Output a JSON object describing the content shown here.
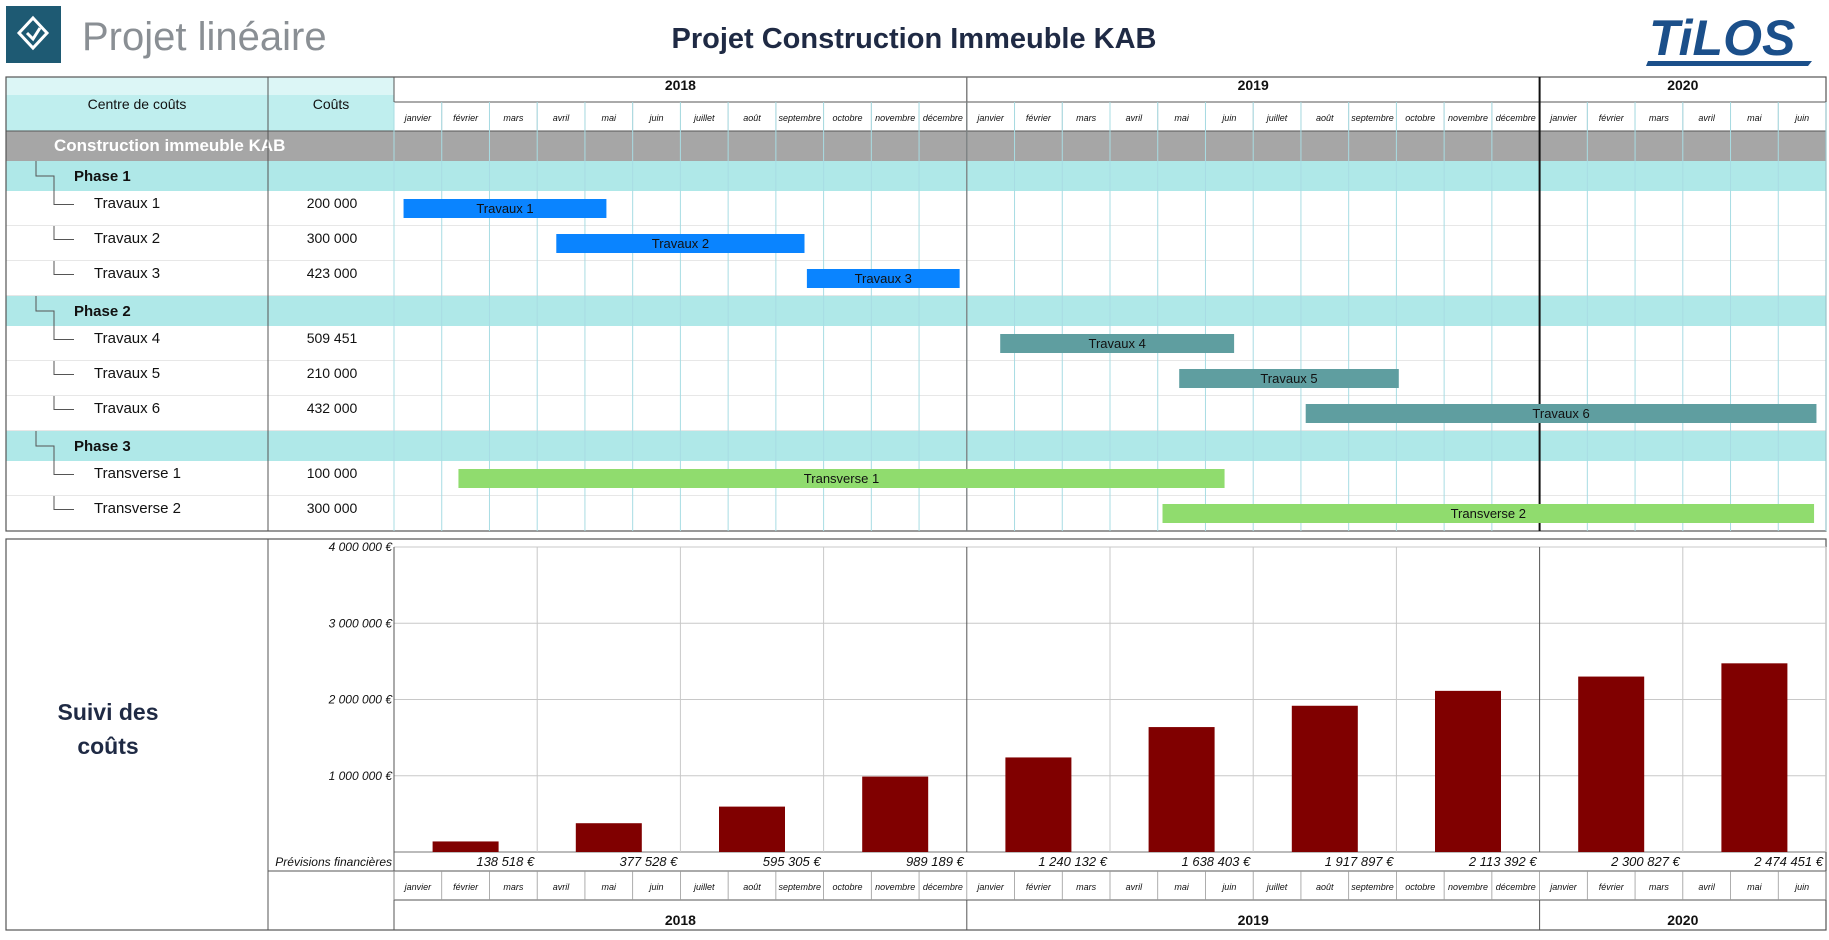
{
  "header": {
    "app_name": "Projet linéaire",
    "title": "Projet Construction Immeuble KAB",
    "brand": "TiLOS"
  },
  "timeline": {
    "years": [
      {
        "label": "2018",
        "start": 0,
        "months": 12
      },
      {
        "label": "2019",
        "start": 12,
        "months": 12
      },
      {
        "label": "2020",
        "start": 24,
        "months": 6
      }
    ],
    "months": [
      "janvier",
      "février",
      "mars",
      "avril",
      "mai",
      "juin",
      "juillet",
      "août",
      "septembre",
      "octobre",
      "novembre",
      "décembre",
      "janvier",
      "février",
      "mars",
      "avril",
      "mai",
      "juin",
      "juillet",
      "août",
      "septembre",
      "octobre",
      "novembre",
      "décembre",
      "janvier",
      "février",
      "mars",
      "avril",
      "mai",
      "juin"
    ]
  },
  "table": {
    "col_centre": "Centre de coûts",
    "col_cost": "Coûts",
    "project_label": "Construction immeuble KAB"
  },
  "colors": {
    "header_teal": "#bfeeee",
    "phase_bg": "#afe8e8",
    "project_bg": "#a6a6a6",
    "grid_line": "#a8dce3",
    "blue_bar": "#0a84ff",
    "teal_bar": "#5f9ea0",
    "green_bar": "#90dc6e",
    "cost_bar": "#800000",
    "title_color": "#1f2a44",
    "logo_color": "#1b4f8a"
  },
  "rows": [
    {
      "type": "phase",
      "label": "Phase 1"
    },
    {
      "type": "task",
      "label": "Travaux 1",
      "cost": "200 000",
      "bar": {
        "label": "Travaux 1",
        "start": 0.2,
        "end": 4.45,
        "style": "blue"
      }
    },
    {
      "type": "task",
      "label": "Travaux 2",
      "cost": "300 000",
      "bar": {
        "label": "Travaux 2",
        "start": 3.4,
        "end": 8.6,
        "style": "blue"
      }
    },
    {
      "type": "task",
      "label": "Travaux 3",
      "cost": "423 000",
      "bar": {
        "label": "Travaux 3",
        "start": 8.65,
        "end": 11.85,
        "style": "blue"
      }
    },
    {
      "type": "phase",
      "label": "Phase 2"
    },
    {
      "type": "task",
      "label": "Travaux 4",
      "cost": "509 451",
      "bar": {
        "label": "Travaux 4",
        "start": 12.7,
        "end": 17.6,
        "style": "teal"
      }
    },
    {
      "type": "task",
      "label": "Travaux 5",
      "cost": "210 000",
      "bar": {
        "label": "Travaux 5",
        "start": 16.45,
        "end": 21.05,
        "style": "teal"
      }
    },
    {
      "type": "task",
      "label": "Travaux 6",
      "cost": "432 000",
      "bar": {
        "label": "Travaux 6",
        "start": 19.1,
        "end": 29.8,
        "style": "teal"
      }
    },
    {
      "type": "phase",
      "label": "Phase 3"
    },
    {
      "type": "task",
      "label": "Transverse 1",
      "cost": "100 000",
      "bar": {
        "label": "Transverse 1",
        "start": 1.35,
        "end": 17.4,
        "style": "green"
      }
    },
    {
      "type": "task",
      "label": "Transverse 2",
      "cost": "300 000",
      "bar": {
        "label": "Transverse 2",
        "start": 16.1,
        "end": 29.75,
        "style": "green"
      }
    }
  ],
  "cost_panel": {
    "title_line1": "Suivi des",
    "title_line2": "coûts",
    "forecast_label": "Prévisions financières"
  },
  "chart_data": {
    "type": "bar",
    "title": "",
    "xlabel": "",
    "ylabel": "",
    "ylim": [
      0,
      4000000
    ],
    "y_ticks": [
      1000000,
      2000000,
      3000000,
      4000000
    ],
    "y_tick_labels": [
      "1 000 000 €",
      "2 000 000 €",
      "3 000 000 €",
      "4 000 000 €"
    ],
    "categories": [
      "2018 Q1",
      "2018 Q2",
      "2018 Q3",
      "2018 Q4",
      "2019 Q1",
      "2019 Q2",
      "2019 Q3",
      "2019 Q4",
      "2020 Q1",
      "2020 Q2"
    ],
    "values": [
      138518,
      377528,
      595305,
      989189,
      1240132,
      1638403,
      1917897,
      2113392,
      2300827,
      2474451
    ],
    "value_labels": [
      "138 518 €",
      "377 528 €",
      "595 305 €",
      "989 189 €",
      "1 240 132 €",
      "1 638 403 €",
      "1 917 897 €",
      "2 113 392 €",
      "2 300 827 €",
      "2 474 451 €"
    ],
    "grid": true,
    "legend": "none"
  }
}
